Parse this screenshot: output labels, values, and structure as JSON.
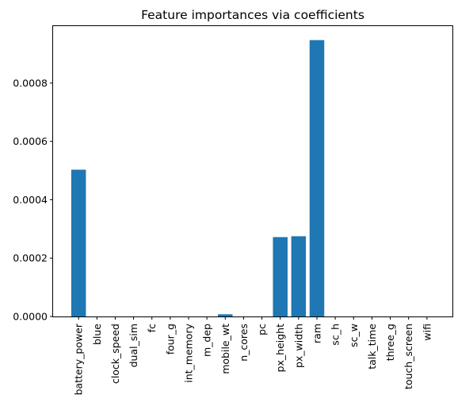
{
  "chart_data": {
    "type": "bar",
    "title": "Feature importances via coefficients",
    "xlabel": "",
    "ylabel": "",
    "categories": [
      "battery_power",
      "blue",
      "clock_speed",
      "dual_sim",
      "fc",
      "four_g",
      "int_memory",
      "m_dep",
      "mobile_wt",
      "n_cores",
      "pc",
      "px_height",
      "px_width",
      "ram",
      "sc_h",
      "sc_w",
      "talk_time",
      "three_g",
      "touch_screen",
      "wifi"
    ],
    "values": [
      0.000503,
      0,
      0,
      0,
      0,
      0,
      0,
      0,
      7.5e-06,
      0,
      0,
      0.000272,
      0.000275,
      0.000947,
      0,
      0,
      0,
      0,
      0,
      0
    ],
    "ylim": [
      0,
      0.000995
    ],
    "yticks": [
      0,
      0.0002,
      0.0004,
      0.0006,
      0.0008
    ],
    "ytick_labels": [
      "0.0000",
      "0.0002",
      "0.0004",
      "0.0006",
      "0.0008"
    ],
    "bar_color": "#1f77b4",
    "grid": false,
    "legend": "none"
  }
}
